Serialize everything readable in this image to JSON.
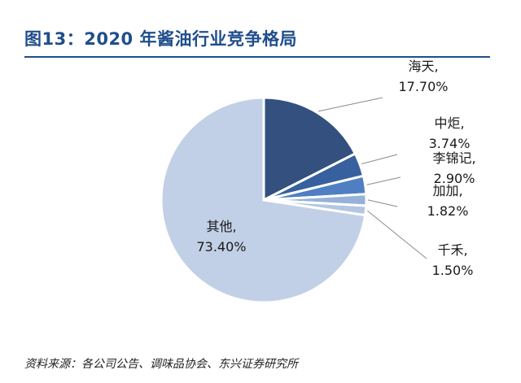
{
  "figure": {
    "title": "图13：2020 年酱油行业竞争格局",
    "source": "资料来源：各公司公告、调味品协会、东兴证券研究所"
  },
  "chart_data": {
    "type": "pie",
    "title": "",
    "labels": [
      "海天",
      "中炬",
      "李锦记",
      "加加",
      "千禾",
      "其他"
    ],
    "values": [
      17.7,
      3.74,
      2.9,
      1.82,
      1.5,
      73.4
    ],
    "value_labels": [
      "17.70%",
      "3.74%",
      "2.90%",
      "1.82%",
      "1.50%",
      "73.40%"
    ],
    "colors": [
      "#33507f",
      "#37609f",
      "#4f7fc2",
      "#97b2d8",
      "#b3c6e2",
      "#c1d0e6"
    ],
    "start": "12 o'clock, clockwise",
    "legend": "none"
  }
}
